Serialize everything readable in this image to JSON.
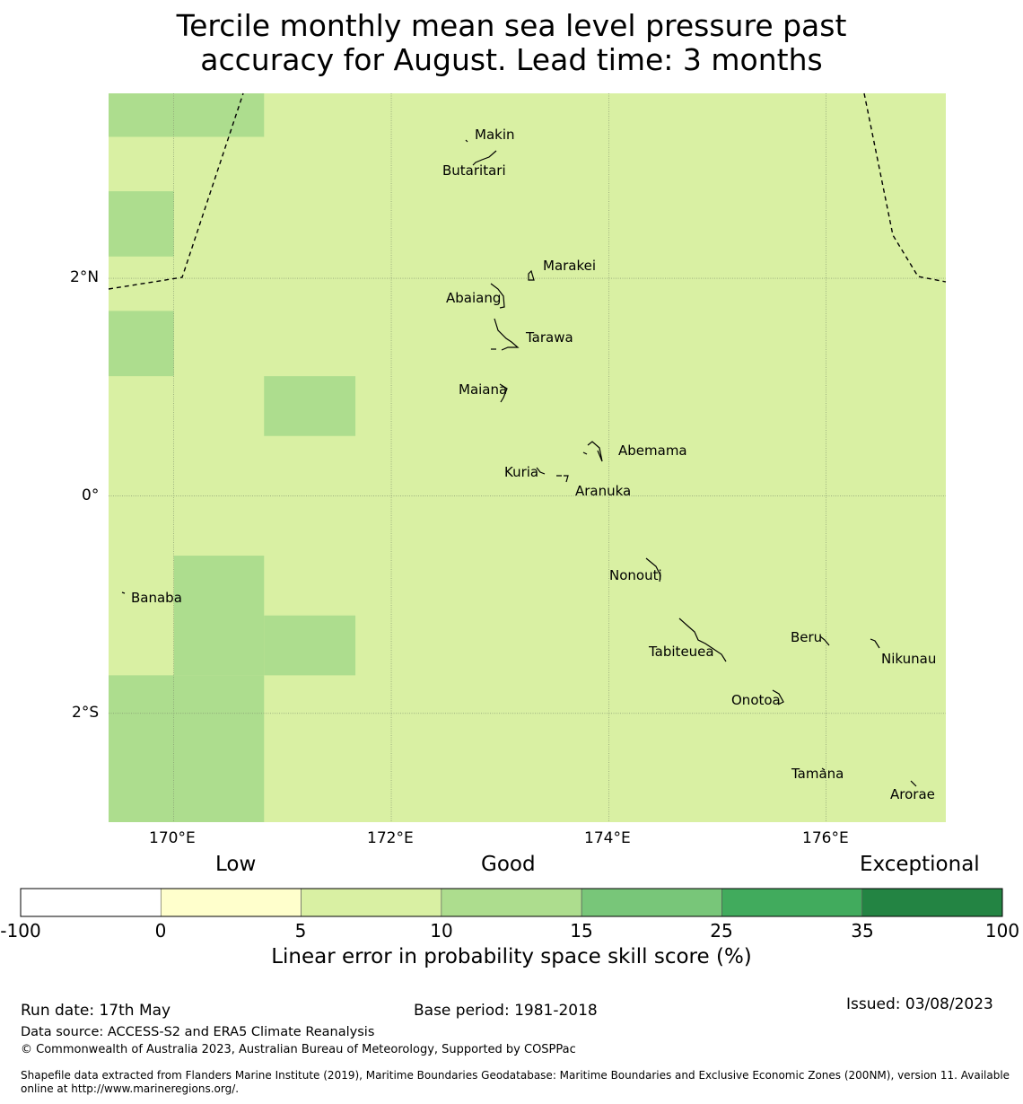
{
  "title": {
    "line1": "Tercile monthly mean sea level pressure past",
    "line2": "accuracy for August. Lead time: 3 months"
  },
  "map": {
    "longitude_ticks": [
      "170°E",
      "172°E",
      "174°E",
      "176°E"
    ],
    "latitude_ticks": [
      "2°N",
      "0°",
      "2°S"
    ],
    "islands": [
      {
        "name": "Makin"
      },
      {
        "name": "Butaritari"
      },
      {
        "name": "Marakei"
      },
      {
        "name": "Abaiang"
      },
      {
        "name": "Tarawa"
      },
      {
        "name": "Maiana"
      },
      {
        "name": "Abemama"
      },
      {
        "name": "Kuria"
      },
      {
        "name": "Aranuka"
      },
      {
        "name": "Nonouti"
      },
      {
        "name": "Banaba"
      },
      {
        "name": "Beru"
      },
      {
        "name": "Tabiteuea"
      },
      {
        "name": "Nikunau"
      },
      {
        "name": "Onotoa"
      },
      {
        "name": "Tamana"
      },
      {
        "name": "Arorae"
      }
    ],
    "grid_cells": [
      {
        "lon": [
          169.4,
          170.0
        ],
        "lat": [
          3.3,
          3.7
        ],
        "category": "10-15"
      },
      {
        "lon": [
          170.0,
          170.83
        ],
        "lat": [
          3.3,
          3.7
        ],
        "category": "10-15"
      },
      {
        "lon": [
          169.4,
          170.0
        ],
        "lat": [
          2.2,
          2.8
        ],
        "category": "10-15"
      },
      {
        "lon": [
          169.4,
          170.0
        ],
        "lat": [
          1.1,
          1.7
        ],
        "category": "10-15"
      },
      {
        "lon": [
          170.83,
          171.67
        ],
        "lat": [
          0.55,
          1.1
        ],
        "category": "10-15"
      },
      {
        "lon": [
          170.0,
          170.83
        ],
        "lat": [
          -1.65,
          -0.55
        ],
        "category": "10-15"
      },
      {
        "lon": [
          170.83,
          171.67
        ],
        "lat": [
          -1.65,
          -1.1
        ],
        "category": "10-15"
      },
      {
        "lon": [
          169.4,
          170.83
        ],
        "lat": [
          -3.0,
          -1.65
        ],
        "category": "10-15"
      }
    ],
    "background_category": "5-10"
  },
  "colorbar": {
    "category_labels": [
      "Low",
      "Good",
      "Exceptional"
    ],
    "tick_labels": [
      "-100",
      "0",
      "5",
      "10",
      "15",
      "25",
      "35",
      "100"
    ],
    "colors": [
      "#ffffff",
      "#ffffcc",
      "#d9f0a3",
      "#addd8e",
      "#78c679",
      "#41ab5d",
      "#238443"
    ],
    "title": "Linear error in probability space skill score (%)"
  },
  "footer": {
    "run_date": "Run date: 17th May",
    "base_period": "Base period: 1981-2018",
    "issued": "Issued: 03/08/2023",
    "data_source": "Data source: ACCESS-S2 and ERA5 Climate Reanalysis",
    "copyright": "© Commonwealth of Australia 2023, Australian Bureau of Meteorology, Supported by COSPPac",
    "shapefile_line1": "Shapefile data extracted from Flanders Marine Institute (2019), Maritime Boundaries Geodatabase: Maritime Boundaries and Exclusive Economic Zones (200NM), version 11. Available",
    "shapefile_line2": "online at http://www.marineregions.org/."
  },
  "style_colors": {
    "map_background": "#d9f0a3",
    "cell_highlight": "#addd8e",
    "gridline": "#7a8a6a",
    "coastline": "#000000",
    "eez_boundary": "#000000"
  }
}
